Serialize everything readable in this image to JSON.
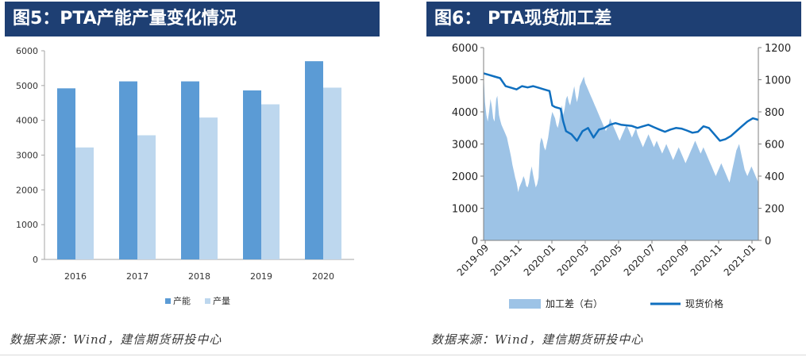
{
  "left": {
    "title": "图5：PTA产能产量变化情况",
    "source": "数据来源：Wind，建信期货研投中心"
  },
  "right": {
    "title": "图6：  PTA现货加工差",
    "source": "数据来源：Wind，建信期货研投中心"
  },
  "colors": {
    "title_bg": "#1e3f73",
    "bar_dark": "#5b9bd5",
    "bar_light": "#bdd7ee",
    "area": "#9dc3e6",
    "line": "#0f6fbf"
  },
  "chart_data": [
    {
      "type": "bar",
      "categories": [
        "2016",
        "2017",
        "2018",
        "2019",
        "2020"
      ],
      "series": [
        {
          "name": "产能",
          "values": [
            4920,
            5120,
            5120,
            4860,
            5700
          ]
        },
        {
          "name": "产量",
          "values": [
            3220,
            3570,
            4080,
            4460,
            4940
          ]
        }
      ],
      "ylim": [
        0,
        6000
      ],
      "yticks": [
        "0",
        "1000",
        "2000",
        "3000",
        "4000",
        "5000",
        "6000"
      ],
      "grid": false,
      "legend": "bottom"
    },
    {
      "type": "area+line",
      "x_ticks": [
        "2019-09",
        "2019-11",
        "2020-01",
        "2020-03",
        "2020-05",
        "2020-07",
        "2020-09",
        "2020-11",
        "2021-01"
      ],
      "y_left_ticks": [
        "0",
        "1000",
        "2000",
        "3000",
        "4000",
        "5000",
        "6000"
      ],
      "y_right_ticks": [
        "0",
        "200",
        "400",
        "600",
        "800",
        "1000",
        "1200"
      ],
      "ylim_left": [
        0,
        6000
      ],
      "ylim_right": [
        0,
        1200
      ],
      "legend": "bottom",
      "series": [
        {
          "name": "加工差（右）",
          "kind": "area",
          "axis": "right",
          "x": [
            0,
            0.5,
            1,
            1.5,
            2,
            2.5,
            3,
            3.5,
            4,
            4.3,
            4.6,
            5,
            5.3,
            5.6,
            6,
            6.5,
            7,
            7.5,
            8,
            8.5,
            9,
            9.5,
            10,
            10.5,
            11,
            11.5,
            12,
            12.3,
            12.6,
            13,
            13.5,
            14,
            14.5,
            15,
            15.5,
            16,
            16.5,
            17,
            17.5,
            18,
            18.5,
            19,
            19.5,
            20,
            20.5,
            21,
            21.5,
            22,
            22.5,
            23,
            23.5,
            24,
            24.5,
            25,
            25.5,
            26,
            26.5,
            27,
            27.5,
            28,
            28.5,
            29,
            29.5,
            30,
            30.5,
            31,
            31.5,
            32,
            32.5,
            33,
            33.5,
            34,
            34.5,
            35,
            35.5,
            36,
            36.5,
            37,
            37.5,
            38,
            38.5,
            39,
            39.5,
            40,
            40.5,
            41,
            41.5,
            42,
            42.5,
            43,
            43.5,
            44,
            44.5,
            45,
            45.5,
            46,
            46.5,
            47,
            47.5,
            48,
            48.5,
            49,
            49.5,
            50,
            50.5,
            51,
            51.5,
            52,
            52.5,
            53,
            53.5,
            54,
            54.5,
            55,
            55.5,
            56,
            56.5,
            57,
            57.5,
            58,
            58.5,
            59,
            59.5,
            60,
            60.5,
            61,
            61.5,
            62,
            62.5,
            63,
            63.5,
            64,
            64.5,
            65,
            65.5,
            66,
            66.5,
            67,
            67.5,
            68,
            68.5,
            69,
            69.5,
            70,
            70.5,
            71,
            71.5,
            72,
            72.5,
            73,
            73.5,
            74,
            74.5,
            75,
            75.5,
            76,
            76.5,
            77,
            77.5,
            78,
            78.5,
            79,
            79.5,
            80,
            80.5,
            81,
            81.5,
            82,
            82.5,
            83,
            83.5,
            84,
            84.5,
            85,
            85.5,
            86,
            86.5,
            87,
            87.5,
            88,
            88.5,
            89,
            89.5,
            90,
            90.5,
            91,
            91.5,
            92,
            92.5,
            93,
            93.5,
            94,
            94.5,
            95,
            95.5,
            96,
            96.5,
            97,
            97.5,
            98,
            98.5,
            99,
            99.5,
            100
          ],
          "values": [
            1040,
            860,
            780,
            740,
            800,
            880,
            830,
            760,
            740,
            820,
            880,
            900,
            840,
            780,
            750,
            720,
            700,
            680,
            660,
            640,
            600,
            560,
            520,
            470,
            430,
            390,
            360,
            330,
            300,
            330,
            350,
            370,
            400,
            380,
            340,
            330,
            360,
            420,
            460,
            410,
            370,
            330,
            350,
            390,
            600,
            640,
            620,
            580,
            560,
            600,
            640,
            700,
            760,
            800,
            780,
            760,
            720,
            700,
            740,
            800,
            840,
            780,
            820,
            880,
            900,
            860,
            840,
            880,
            920,
            960,
            900,
            860,
            900,
            960,
            980,
            1000,
            1020,
            980,
            960,
            940,
            920,
            900,
            880,
            860,
            840,
            820,
            800,
            780,
            760,
            740,
            720,
            700,
            680,
            700,
            720,
            760,
            740,
            720,
            700,
            680,
            660,
            640,
            620,
            640,
            660,
            680,
            700,
            720,
            700,
            680,
            660,
            640,
            660,
            680,
            700,
            660,
            640,
            620,
            600,
            580,
            600,
            620,
            640,
            660,
            640,
            620,
            600,
            580,
            600,
            620,
            600,
            580,
            560,
            540,
            560,
            580,
            600,
            580,
            560,
            540,
            520,
            500,
            520,
            540,
            560,
            580,
            560,
            540,
            520,
            500,
            480,
            500,
            520,
            540,
            560,
            580,
            600,
            620,
            600,
            580,
            560,
            540,
            560,
            580,
            560,
            540,
            520,
            500,
            480,
            460,
            440,
            420,
            400,
            420,
            440,
            460,
            480,
            460,
            440,
            420,
            400,
            380,
            360,
            400,
            440,
            480,
            520,
            560,
            580,
            600,
            560,
            520,
            480,
            440,
            420,
            400,
            420,
            440,
            460,
            440,
            420,
            400,
            380,
            360
          ]
        },
        {
          "name": "现货价格",
          "kind": "line",
          "axis": "left",
          "x": [
            0,
            2,
            4,
            6,
            8,
            10,
            12,
            13,
            14,
            16,
            18,
            20,
            22,
            24,
            25,
            26,
            28,
            29,
            30,
            32,
            34,
            36,
            38,
            40,
            42,
            44,
            46,
            48,
            50,
            52,
            54,
            56,
            58,
            60,
            62,
            64,
            66,
            68,
            70,
            72,
            74,
            76,
            78,
            80,
            82,
            84,
            86,
            88,
            90,
            92,
            94,
            96,
            98,
            100
          ],
          "values": [
            5200,
            5150,
            5100,
            5050,
            4800,
            4750,
            4700,
            4750,
            4800,
            4760,
            4800,
            4750,
            4700,
            4650,
            4200,
            4150,
            4100,
            3700,
            3400,
            3300,
            3100,
            3400,
            3500,
            3200,
            3450,
            3500,
            3600,
            3650,
            3600,
            3580,
            3560,
            3500,
            3550,
            3600,
            3520,
            3450,
            3380,
            3450,
            3500,
            3480,
            3420,
            3350,
            3380,
            3550,
            3500,
            3300,
            3100,
            3150,
            3250,
            3400,
            3550,
            3700,
            3800,
            3750
          ]
        }
      ]
    }
  ]
}
